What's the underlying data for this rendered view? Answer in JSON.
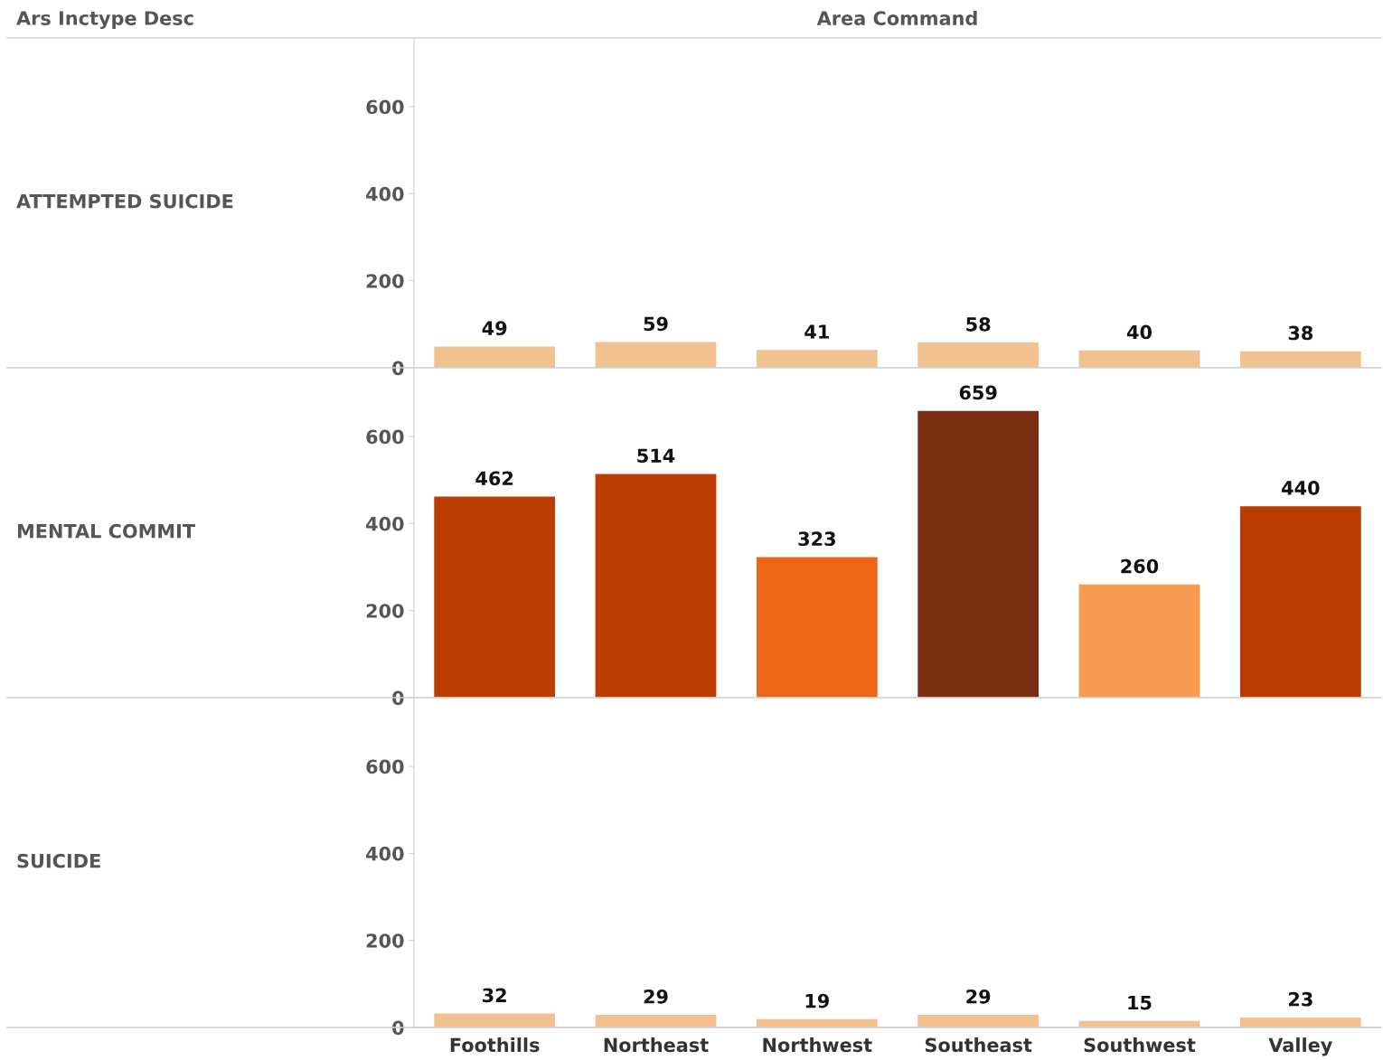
{
  "chart_data": [
    {
      "type": "bar",
      "ylabel": "ATTEMPTED SUICIDE",
      "annotations": [
        "Ars Inctype Desc",
        "Area Command"
      ],
      "categories": [
        null,
        null,
        null,
        null,
        null,
        null
      ],
      "values": [
        49,
        59,
        41,
        58,
        40,
        38
      ],
      "colors": [
        "#f1c290",
        "#f1c290",
        "#f1c290",
        "#f1c290",
        "#f1c290",
        "#f1c290"
      ],
      "ylim": [
        0,
        758
      ],
      "yticks": [
        0,
        200,
        400,
        600
      ],
      "data_labels": true,
      "tick_labels": "y",
      "grid": false,
      "legend": false
    },
    {
      "type": "bar",
      "ylabel": "MENTAL COMMIT",
      "categories": [
        null,
        null,
        null,
        null,
        null,
        null
      ],
      "values": [
        462,
        514,
        323,
        659,
        260,
        440
      ],
      "colors": [
        "#bb3d02",
        "#bb3d02",
        "#ec6616",
        "#7a2e12",
        "#f99b4f",
        "#bb3d02"
      ],
      "ylim": [
        0,
        758
      ],
      "yticks": [
        0,
        200,
        400,
        600
      ],
      "data_labels": true,
      "tick_labels": "y",
      "grid": false,
      "legend": false
    },
    {
      "type": "bar",
      "ylabel": "SUICIDE",
      "categories": [
        "Foothills",
        "Northeast",
        "Northwest",
        "Southeast",
        "Southwest",
        "Valley"
      ],
      "values": [
        32,
        29,
        19,
        29,
        15,
        23
      ],
      "colors": [
        "#f1c290",
        "#f1c290",
        "#f1c290",
        "#f1c290",
        "#f1c290",
        "#f1c290"
      ],
      "ylim": [
        0,
        758
      ],
      "yticks": [
        0,
        200,
        400,
        600
      ],
      "data_labels": true,
      "grid": false,
      "legend": false
    }
  ]
}
